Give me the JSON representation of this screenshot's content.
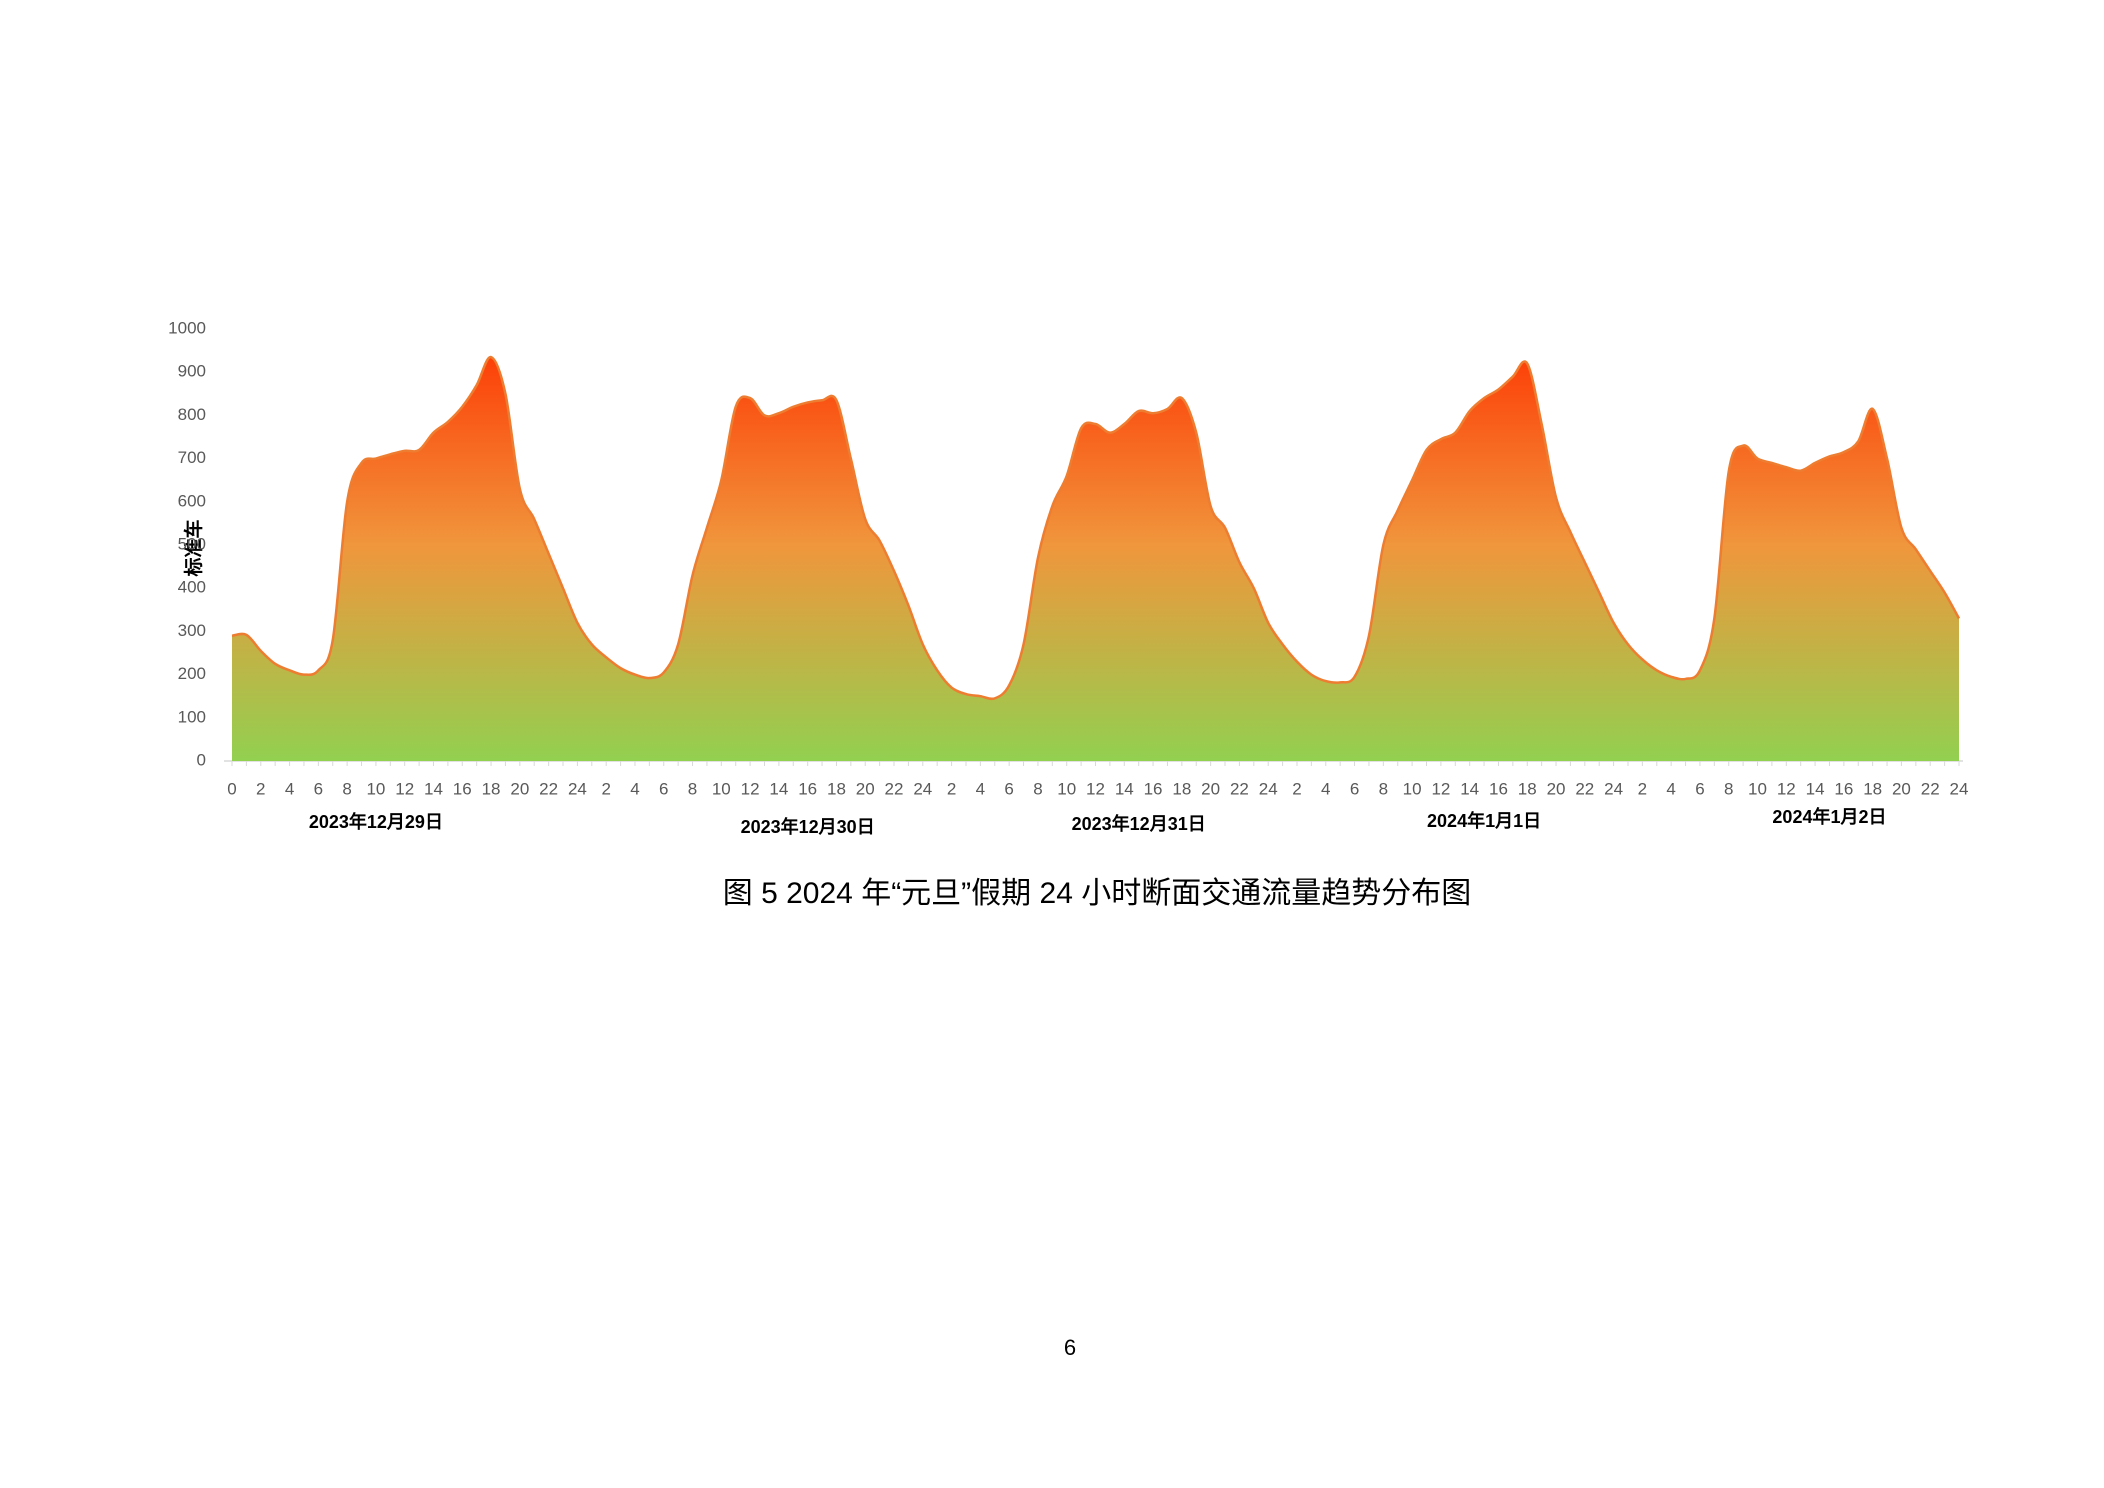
{
  "chart_data": {
    "type": "area",
    "y_label": "标准车",
    "categories": [
      "0",
      null,
      "2",
      null,
      "4",
      null,
      "6",
      null,
      "8",
      null,
      "10",
      null,
      "12",
      null,
      "14",
      null,
      "16",
      null,
      "18",
      null,
      "20",
      null,
      "22",
      null,
      "24",
      null,
      "2",
      null,
      "4",
      null,
      "6",
      null,
      "8",
      null,
      "10",
      null,
      "12",
      null,
      "14",
      null,
      "16",
      null,
      "18",
      null,
      "20",
      null,
      "22",
      null,
      "24",
      null,
      "2",
      null,
      "4",
      null,
      "6",
      null,
      "8",
      null,
      "10",
      null,
      "12",
      null,
      "14",
      null,
      "16",
      null,
      "18",
      null,
      "20",
      null,
      "22",
      null,
      "24",
      null,
      "2",
      null,
      "4",
      null,
      "6",
      null,
      "8",
      null,
      "10",
      null,
      "12",
      null,
      "14",
      null,
      "16",
      null,
      "18",
      null,
      "20",
      null,
      "22",
      null,
      "24",
      null,
      "2",
      null,
      "4",
      null,
      "6",
      null,
      "8",
      null,
      "10",
      null,
      "12",
      null,
      "14",
      null,
      "16",
      null,
      "18",
      null,
      "20",
      null,
      "22",
      null,
      "24"
    ],
    "values": [
      290,
      292,
      255,
      225,
      210,
      200,
      210,
      280,
      600,
      690,
      700,
      710,
      718,
      720,
      760,
      785,
      820,
      870,
      935,
      850,
      630,
      560,
      480,
      400,
      320,
      270,
      240,
      215,
      200,
      192,
      205,
      270,
      430,
      540,
      650,
      820,
      840,
      800,
      805,
      820,
      830,
      835,
      835,
      700,
      560,
      510,
      440,
      360,
      270,
      210,
      170,
      155,
      150,
      145,
      175,
      270,
      470,
      590,
      660,
      770,
      780,
      760,
      780,
      810,
      805,
      815,
      840,
      760,
      590,
      540,
      460,
      400,
      320,
      270,
      230,
      200,
      185,
      182,
      195,
      290,
      500,
      580,
      650,
      720,
      745,
      760,
      810,
      840,
      860,
      890,
      920,
      780,
      610,
      530,
      460,
      390,
      320,
      270,
      235,
      210,
      195,
      190,
      210,
      330,
      670,
      730,
      700,
      690,
      680,
      672,
      690,
      705,
      715,
      740,
      815,
      700,
      540,
      490,
      440,
      390,
      330
    ],
    "line_color": "#ed7d31",
    "gradient_colors": [
      "#92d050",
      "#f0963c",
      "#ff3300"
    ],
    "day_labels": [
      "2023年12月29日",
      "2023年12月30日",
      "2023年12月31日",
      "2024年1月1日",
      "2024年1月2日"
    ],
    "ylim": [
      0,
      1000
    ],
    "yticks": [
      0,
      100,
      200,
      300,
      400,
      500,
      600,
      700,
      800,
      900,
      1000
    ],
    "grid": false
  },
  "caption": "图 5  2024 年“元旦”假期 24 小时断面交通流量趋势分布图",
  "page_number": "6"
}
